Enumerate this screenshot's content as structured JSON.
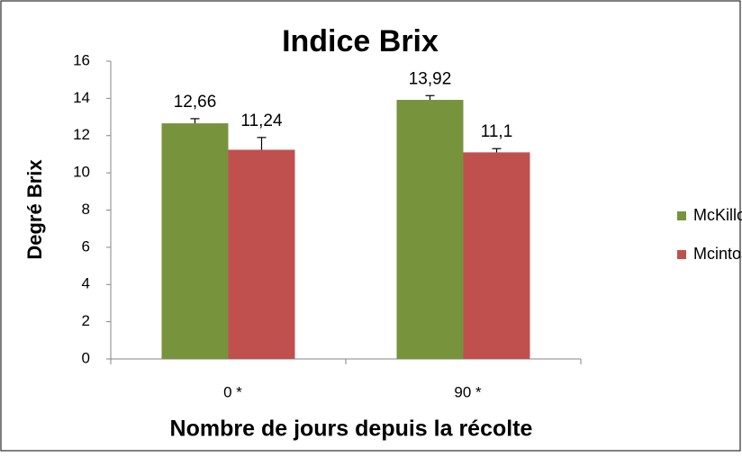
{
  "chart_data": {
    "type": "bar",
    "title": "Indice Brix",
    "y_label": "Degré Brix",
    "x_label": "Nombre de jours depuis la récolte",
    "categories": [
      "0 *",
      "90 *"
    ],
    "series": [
      {
        "name": "McKillop",
        "color": "#77933c",
        "values": [
          12.66,
          13.92
        ],
        "value_labels": [
          "12,66",
          "13,92"
        ],
        "errors": [
          0.25,
          0.23
        ]
      },
      {
        "name": "Mcintosh",
        "color": "#c0504d",
        "values": [
          11.24,
          11.1
        ],
        "value_labels": [
          "11,24",
          "11,1"
        ],
        "errors": [
          0.66,
          0.2
        ]
      }
    ],
    "ylim": [
      0,
      16
    ],
    "yticks": [
      0,
      2,
      4,
      6,
      8,
      10,
      12,
      14,
      16
    ],
    "grid": false,
    "legend": "right"
  }
}
